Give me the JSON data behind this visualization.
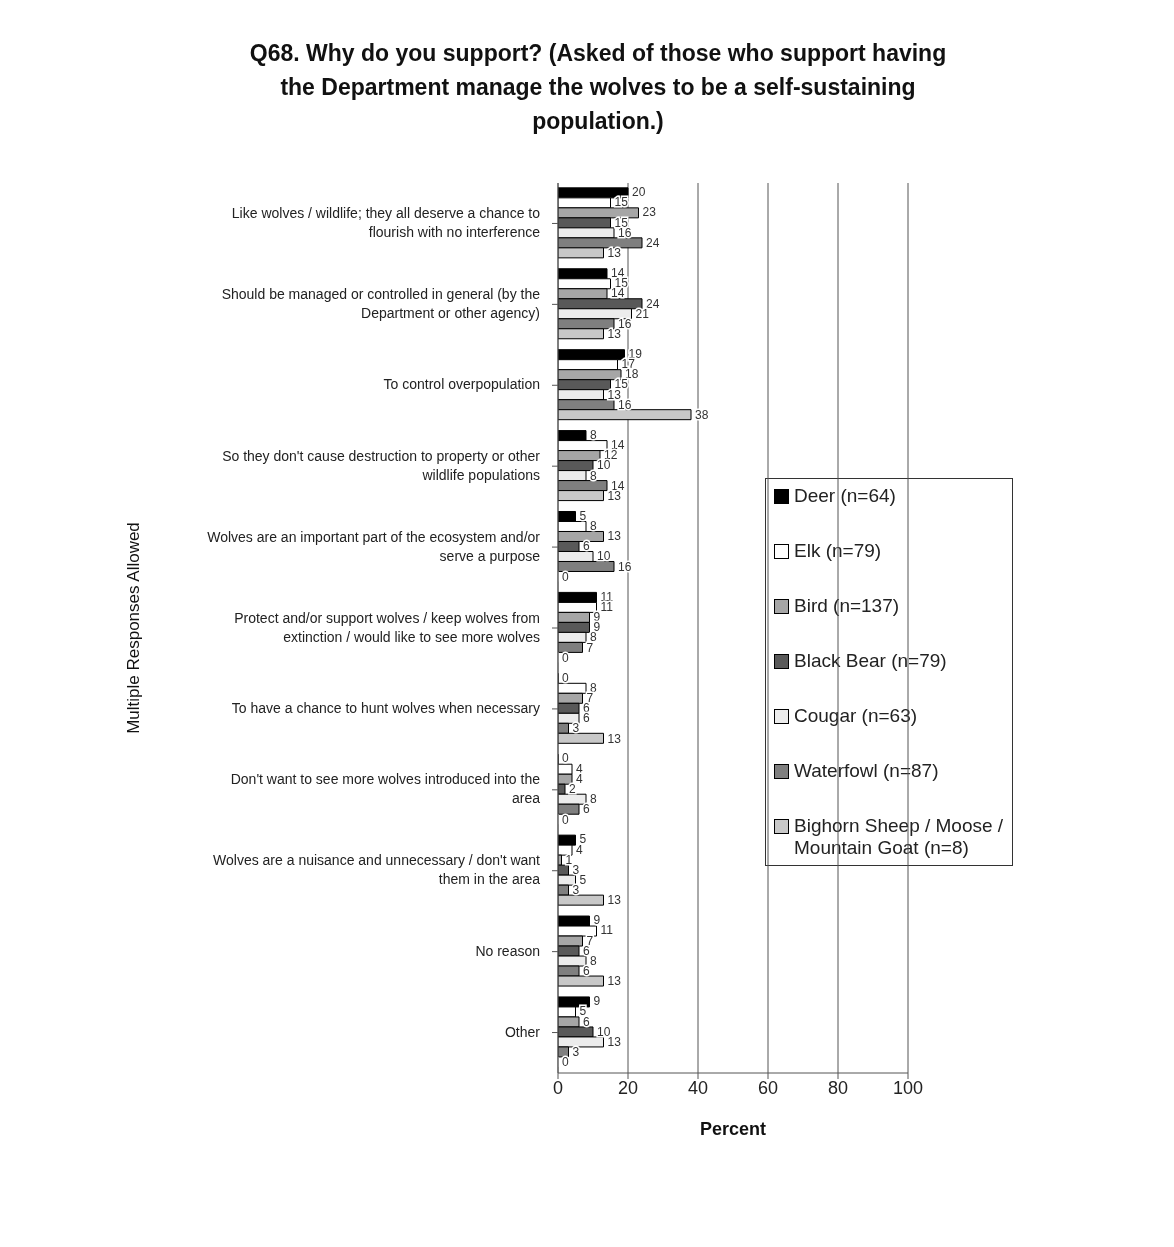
{
  "chart_data": {
    "type": "bar",
    "orientation": "horizontal",
    "title": "Q68. Why do you support? (Asked of those who support having the Department manage the wolves to be a self-sustaining population.)",
    "xlabel": "Percent",
    "ylabel": "Multiple Responses Allowed",
    "categories": [
      "Like wolves / wildlife; they all deserve a chance to flourish with no interference",
      "Should be managed or controlled in general (by the Department or other agency)",
      "To control overpopulation",
      "So they don't cause destruction to property or other wildlife populations",
      "Wolves are an important part of the ecosystem and/or serve a purpose",
      "Protect and/or support wolves / keep wolves from extinction / would like to see more wolves",
      "To have a chance to hunt wolves when necessary",
      "Don't want to see more wolves introduced into the area",
      "Wolves are a nuisance and unnecessary / don't want them in the area",
      "No reason",
      "Other"
    ],
    "series": [
      {
        "name": "Deer (n=64)",
        "color": "#000000",
        "values": [
          20,
          14,
          19,
          8,
          5,
          11,
          0,
          0,
          5,
          9,
          9
        ]
      },
      {
        "name": "Elk (n=79)",
        "color": "#ffffff",
        "values": [
          15,
          15,
          17,
          14,
          8,
          11,
          8,
          4,
          4,
          11,
          5
        ]
      },
      {
        "name": "Bird (n=137)",
        "color": "#a6a6a6",
        "values": [
          23,
          14,
          18,
          12,
          13,
          9,
          7,
          4,
          1,
          7,
          6
        ]
      },
      {
        "name": "Black Bear (n=79)",
        "color": "#595959",
        "values": [
          15,
          24,
          15,
          10,
          6,
          9,
          6,
          2,
          3,
          6,
          10
        ]
      },
      {
        "name": "Cougar (n=63)",
        "color": "#ececec",
        "values": [
          16,
          21,
          13,
          8,
          10,
          8,
          6,
          8,
          5,
          8,
          13
        ]
      },
      {
        "name": "Waterfowl (n=87)",
        "color": "#7f7f7f",
        "values": [
          24,
          16,
          16,
          14,
          16,
          7,
          3,
          6,
          3,
          6,
          3
        ]
      },
      {
        "name": "Bighorn Sheep / Moose / Mountain Goat (n=8)",
        "color": "#c8c8c8",
        "values": [
          13,
          13,
          38,
          13,
          0,
          0,
          13,
          0,
          13,
          13,
          0
        ]
      }
    ],
    "xlim": [
      0,
      100
    ],
    "xticks": [
      0,
      20,
      40,
      60,
      80,
      100
    ],
    "grid": "x",
    "legend": "right",
    "data_labels": true
  }
}
